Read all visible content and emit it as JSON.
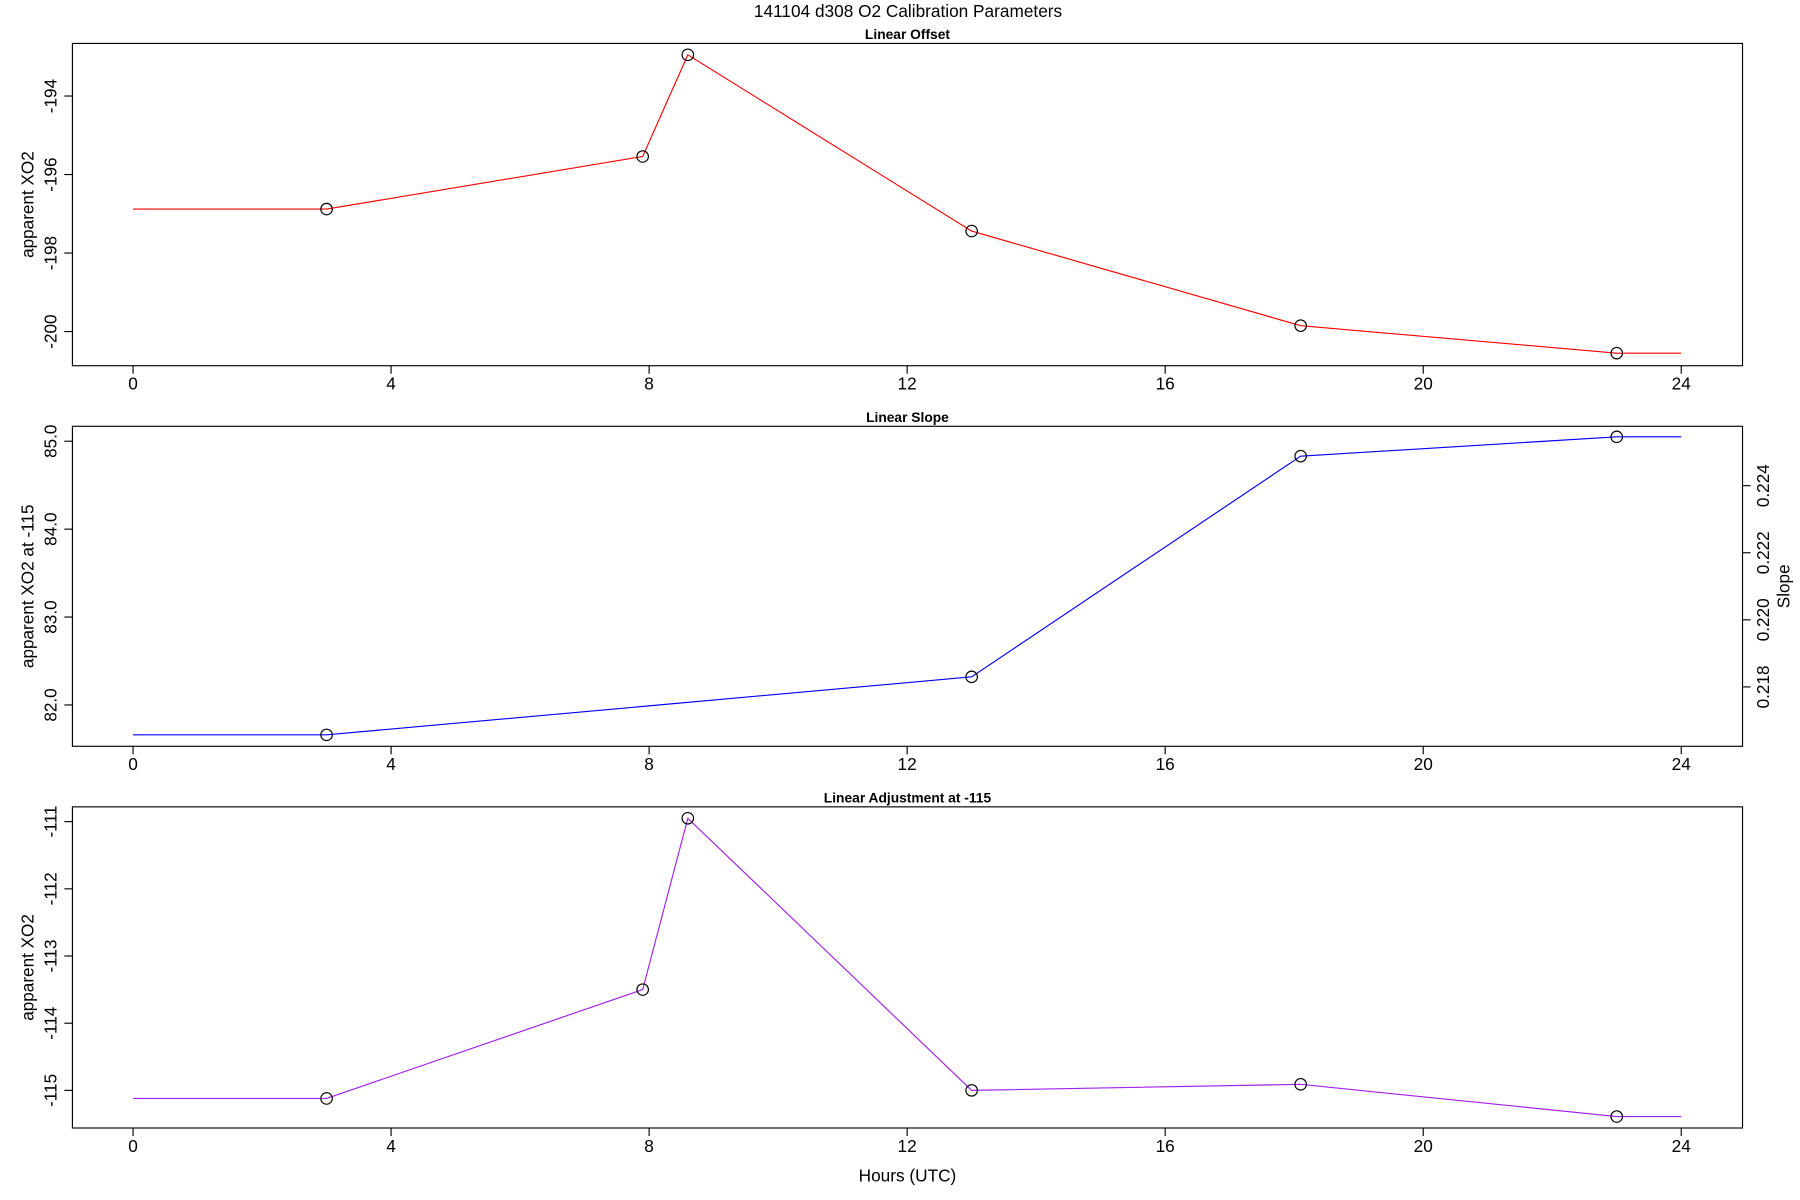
{
  "title": "141104   d308   O2 Calibration Parameters",
  "chart_data": [
    {
      "type": "line",
      "title": "Linear Offset",
      "ylabel": "apparent XO2",
      "x": [
        0,
        3,
        7.9,
        8.6,
        13,
        18.1,
        23,
        24
      ],
      "values": [
        -196.88,
        -196.88,
        -195.54,
        -192.95,
        -197.44,
        -199.85,
        -200.55,
        -200.55
      ],
      "color": "#ff0000",
      "xlim": [
        -0.94,
        24.95
      ],
      "xticks": [
        0,
        4,
        8,
        12,
        16,
        20,
        24
      ],
      "ylim": [
        -200.87,
        -192.66
      ],
      "yticks": [
        -194,
        -196,
        -198,
        -200
      ]
    },
    {
      "type": "line",
      "title": "Linear Slope",
      "ylabel": "apparent XO2 at -115",
      "y2label": "Slope",
      "x": [
        0,
        3,
        13,
        18.1,
        23,
        24
      ],
      "values": [
        81.66,
        81.66,
        82.32,
        84.83,
        85.05,
        85.05
      ],
      "color": "#0000ff",
      "xlim": [
        -0.94,
        24.95
      ],
      "xticks": [
        0,
        4,
        8,
        12,
        16,
        20,
        24
      ],
      "ylim": [
        81.53,
        85.17
      ],
      "yticks": [
        {
          "value": 82,
          "label": "82.0"
        },
        {
          "value": 83,
          "label": "83.0"
        },
        {
          "value": 84,
          "label": "84.0"
        },
        {
          "value": 85,
          "label": "85.0"
        }
      ],
      "y2lim": [
        0.21623,
        0.22577
      ],
      "y2ticks": [
        0.218,
        {
          "value": 0.22,
          "label": "0.220"
        },
        0.222,
        0.224
      ]
    },
    {
      "type": "line",
      "title": "Linear Adjustment at -115",
      "ylabel": "apparent XO2",
      "xlabel": "Hours (UTC)",
      "x": [
        0,
        3,
        7.9,
        8.6,
        13,
        18.1,
        23,
        24
      ],
      "values": [
        -115.12,
        -115.12,
        -113.5,
        -110.95,
        -115.0,
        -114.91,
        -115.39,
        -115.39
      ],
      "color": "#a020f0",
      "xlim": [
        -0.94,
        24.95
      ],
      "xticks": [
        0,
        4,
        8,
        12,
        16,
        20,
        24
      ],
      "ylim": [
        -115.56,
        -110.78
      ],
      "yticks": [
        -111,
        -112,
        -113,
        -114,
        -115
      ]
    }
  ]
}
